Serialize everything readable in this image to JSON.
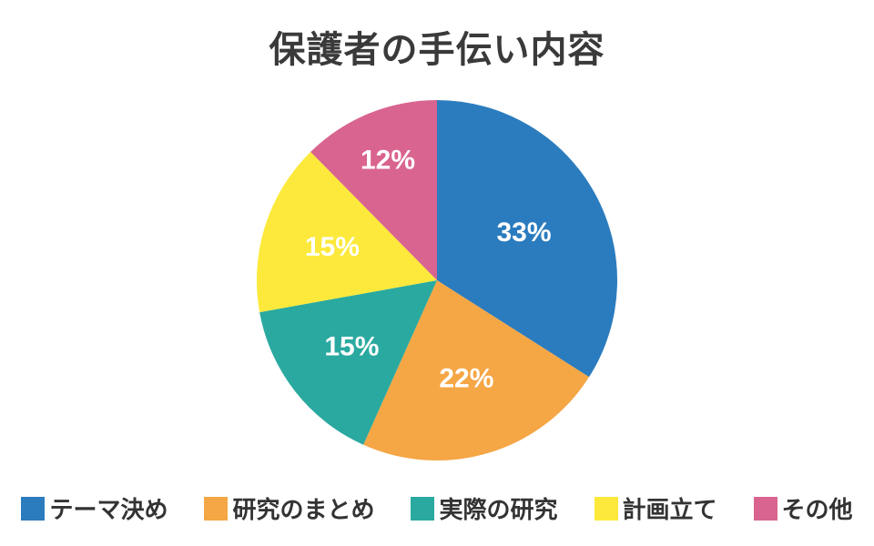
{
  "page": {
    "background_color": "#ffffff"
  },
  "chart_data": {
    "type": "pie",
    "title": "保護者の手伝い内容",
    "labels": [
      "テーマ決め",
      "研究のまとめ",
      "実際の研究",
      "計画立て",
      "その他"
    ],
    "values": [
      33,
      22,
      15,
      15,
      12
    ],
    "percent_labels": [
      "33%",
      "22%",
      "15%",
      "15%",
      "12%"
    ],
    "colors": [
      "#2b7cbe",
      "#f5a645",
      "#2aa9a0",
      "#fce93b",
      "#d9648f"
    ],
    "start_angle": "top",
    "direction": "clockwise",
    "legend_position": "bottom",
    "percent_label_color": "#ffffff",
    "title_color": "#3a3a3a",
    "legend_text_color": "#333333"
  }
}
